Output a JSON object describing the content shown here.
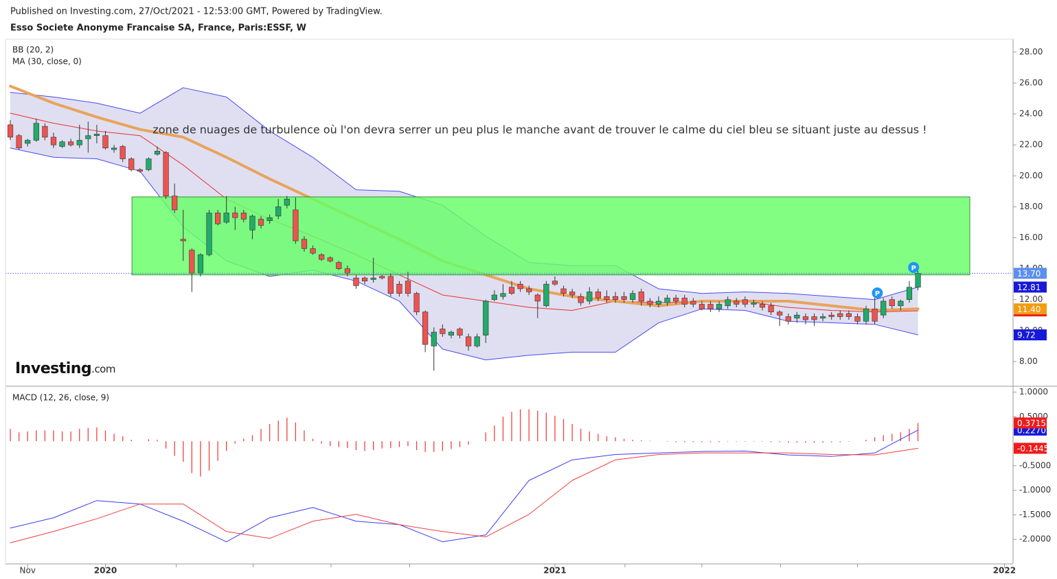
{
  "header": {
    "published": "Published on Investing.com, 27/Oct/2021 - 12:53:00 GMT, Powered by TradingView.",
    "title": "Esso Societe Anonyme Francaise SA, France, Paris:ESSF, W",
    "logo": [
      "Investing",
      ".com"
    ]
  },
  "chart_data": [
    {
      "type": "candlestick",
      "indicators": [
        "BB (20, 2)",
        "MA (30, close, 0)"
      ],
      "annotation": "zone de nuages de turbulence où l'on devra serrer un peu plus le manche avant de trouver le calme du ciel bleu se situant juste au dessus !",
      "up_color": "#22ab6a",
      "down_color": "#ef5350",
      "last_close_label": "13.70",
      "last_close_color": "#5b8ff0",
      "candles": [
        [
          23.3,
          23.6,
          22.3,
          22.5
        ],
        [
          22.6,
          22.7,
          21.7,
          21.8
        ],
        [
          22.1,
          22.4,
          21.9,
          22.3
        ],
        [
          22.3,
          23.7,
          22.2,
          23.4
        ],
        [
          23.2,
          23.4,
          22.3,
          22.5
        ],
        [
          22.5,
          22.8,
          21.8,
          22.0
        ],
        [
          21.9,
          22.3,
          21.8,
          22.2
        ],
        [
          22.2,
          22.4,
          21.9,
          22.0
        ],
        [
          22.0,
          23.3,
          21.8,
          22.3
        ],
        [
          22.4,
          23.5,
          21.5,
          22.6
        ],
        [
          22.6,
          23.3,
          22.1,
          22.7
        ],
        [
          22.6,
          22.9,
          21.7,
          21.8
        ],
        [
          21.7,
          22.0,
          21.5,
          21.8
        ],
        [
          21.9,
          22.0,
          20.9,
          21.1
        ],
        [
          21.1,
          21.2,
          20.3,
          20.4
        ],
        [
          20.4,
          20.5,
          20.2,
          20.3
        ],
        [
          20.4,
          21.2,
          20.3,
          21.1
        ],
        [
          21.4,
          21.9,
          21.3,
          21.6
        ],
        [
          21.5,
          21.6,
          18.5,
          18.7
        ],
        [
          18.7,
          19.5,
          17.6,
          17.8
        ],
        [
          15.9,
          17.8,
          14.5,
          15.8
        ],
        [
          15.2,
          15.3,
          12.5,
          13.7
        ],
        [
          13.7,
          15.0,
          13.5,
          14.9
        ],
        [
          14.9,
          17.8,
          14.8,
          17.6
        ],
        [
          17.6,
          17.8,
          16.8,
          16.9
        ],
        [
          17.0,
          18.7,
          16.9,
          17.6
        ],
        [
          17.6,
          18.0,
          16.5,
          17.3
        ],
        [
          17.6,
          17.8,
          17.0,
          17.2
        ],
        [
          16.5,
          17.5,
          15.9,
          17.4
        ],
        [
          17.2,
          17.4,
          16.6,
          16.8
        ],
        [
          17.1,
          17.5,
          16.9,
          17.3
        ],
        [
          17.4,
          18.5,
          17.2,
          18.0
        ],
        [
          18.1,
          18.7,
          17.9,
          18.5
        ],
        [
          17.8,
          18.6,
          15.6,
          15.8
        ],
        [
          15.9,
          16.1,
          15.1,
          15.3
        ],
        [
          15.3,
          15.5,
          14.9,
          15.0
        ],
        [
          14.9,
          15.0,
          14.5,
          14.6
        ],
        [
          14.7,
          14.8,
          14.4,
          14.5
        ],
        [
          14.4,
          14.5,
          13.9,
          14.0
        ],
        [
          14.0,
          14.2,
          13.5,
          13.7
        ],
        [
          13.4,
          13.6,
          12.7,
          12.9
        ],
        [
          13.4,
          13.5,
          13.0,
          13.2
        ],
        [
          13.3,
          14.7,
          13.1,
          13.4
        ],
        [
          13.5,
          13.6,
          13.3,
          13.4
        ],
        [
          13.5,
          13.7,
          12.2,
          12.4
        ],
        [
          13.0,
          13.2,
          12.2,
          12.4
        ],
        [
          13.2,
          13.8,
          12.2,
          12.4
        ],
        [
          12.4,
          12.5,
          11.0,
          11.2
        ],
        [
          11.2,
          11.3,
          8.6,
          9.1
        ],
        [
          9.0,
          10.2,
          7.4,
          9.9
        ],
        [
          10.1,
          10.4,
          9.6,
          9.8
        ],
        [
          9.7,
          10.0,
          9.5,
          9.9
        ],
        [
          10.1,
          10.2,
          9.5,
          9.7
        ],
        [
          9.6,
          9.8,
          8.7,
          9.0
        ],
        [
          9.0,
          9.8,
          8.9,
          9.6
        ],
        [
          9.7,
          12.0,
          9.2,
          11.9
        ],
        [
          12.0,
          12.6,
          11.9,
          12.3
        ],
        [
          12.2,
          13.0,
          12.0,
          12.4
        ],
        [
          12.8,
          13.2,
          12.3,
          12.4
        ],
        [
          13.0,
          13.2,
          12.5,
          12.7
        ],
        [
          12.7,
          12.9,
          12.3,
          12.5
        ],
        [
          12.3,
          12.4,
          10.8,
          11.9
        ],
        [
          11.6,
          13.2,
          11.5,
          13.0
        ],
        [
          13.2,
          13.5,
          12.9,
          13.0
        ],
        [
          12.7,
          12.9,
          12.2,
          12.4
        ],
        [
          12.5,
          12.7,
          12.1,
          12.3
        ],
        [
          12.2,
          12.4,
          11.6,
          11.8
        ],
        [
          11.9,
          12.8,
          11.7,
          12.5
        ],
        [
          12.5,
          12.7,
          11.9,
          12.1
        ],
        [
          12.2,
          12.6,
          11.8,
          12.0
        ],
        [
          12.2,
          12.5,
          11.8,
          12.0
        ],
        [
          12.2,
          12.5,
          11.8,
          12.0
        ],
        [
          12.0,
          12.6,
          11.8,
          12.4
        ],
        [
          12.5,
          12.7,
          11.6,
          11.9
        ],
        [
          11.9,
          12.1,
          11.5,
          11.7
        ],
        [
          11.7,
          12.2,
          11.5,
          11.9
        ],
        [
          11.8,
          12.3,
          11.6,
          12.1
        ],
        [
          12.1,
          12.3,
          11.7,
          11.9
        ],
        [
          12.1,
          12.3,
          11.5,
          11.7
        ],
        [
          11.9,
          12.1,
          11.5,
          11.7
        ],
        [
          11.7,
          11.9,
          11.3,
          11.4
        ],
        [
          11.7,
          11.9,
          11.2,
          11.4
        ],
        [
          11.4,
          11.9,
          11.2,
          11.7
        ],
        [
          11.6,
          12.2,
          11.4,
          12.0
        ],
        [
          11.9,
          12.1,
          11.5,
          11.7
        ],
        [
          12.0,
          12.2,
          11.5,
          11.7
        ],
        [
          11.7,
          12.0,
          11.5,
          11.8
        ],
        [
          11.7,
          11.9,
          11.3,
          11.5
        ],
        [
          11.6,
          11.8,
          11.0,
          11.2
        ],
        [
          11.2,
          11.3,
          10.3,
          11.0
        ],
        [
          10.9,
          11.1,
          10.4,
          10.6
        ],
        [
          10.8,
          11.2,
          10.5,
          11.0
        ],
        [
          10.9,
          11.1,
          10.4,
          10.7
        ],
        [
          10.9,
          11.1,
          10.3,
          10.7
        ],
        [
          10.8,
          11.1,
          10.6,
          10.9
        ],
        [
          11.0,
          11.2,
          10.7,
          10.9
        ],
        [
          11.1,
          11.3,
          10.7,
          10.9
        ],
        [
          11.1,
          11.3,
          10.7,
          10.9
        ],
        [
          10.9,
          11.1,
          10.4,
          10.6
        ],
        [
          10.6,
          11.6,
          10.4,
          11.4
        ],
        [
          11.4,
          12.2,
          10.4,
          10.6
        ],
        [
          11.0,
          12.1,
          10.8,
          11.9
        ],
        [
          12.0,
          12.2,
          11.4,
          11.6
        ],
        [
          11.6,
          12.0,
          11.3,
          11.9
        ],
        [
          12.0,
          13.2,
          11.8,
          12.8
        ],
        [
          12.8,
          13.9,
          12.6,
          13.7
        ]
      ],
      "line_x": [
        0,
        5,
        10,
        15,
        20,
        25,
        30,
        35,
        40,
        45,
        50,
        55,
        60,
        65,
        70,
        75,
        80,
        85,
        90,
        95,
        100,
        105
      ],
      "band": {
        "color": "#d9d9ee",
        "between": [
          0,
          2
        ]
      },
      "series": [
        {
          "color": "#4a4af0",
          "width": 1,
          "tag_color": "#1818d8",
          "values": [
            25.4,
            25.1,
            24.7,
            24.05,
            25.7,
            25.1,
            22.9,
            21.2,
            19.1,
            19.0,
            18.1,
            16.1,
            14.4,
            14.2,
            14.2,
            12.7,
            12.4,
            12.5,
            12.4,
            12.2,
            12.0,
            12.81
          ]
        },
        {
          "color": "#e83030",
          "width": 1,
          "tag_color": "#e81c1c",
          "values": [
            24.05,
            23.4,
            22.9,
            22.6,
            20.7,
            18.5,
            17.2,
            16.1,
            14.9,
            13.6,
            12.3,
            11.9,
            11.5,
            11.3,
            11.9,
            11.8,
            11.9,
            11.9,
            11.5,
            11.3,
            11.2,
            11.27
          ]
        },
        {
          "color": "#4a4af0",
          "width": 1,
          "tag_color": "#1818d8",
          "values": [
            21.8,
            21.2,
            21.1,
            20.3,
            16.7,
            14.5,
            13.5,
            13.9,
            13.2,
            11.9,
            8.8,
            8.1,
            8.4,
            8.6,
            8.6,
            10.5,
            11.4,
            11.3,
            10.6,
            10.5,
            10.4,
            9.72
          ]
        },
        {
          "color": "#e9a35a",
          "width": 4,
          "tag_color": "#f39c12",
          "last_label": "11.40",
          "values": [
            25.8,
            24.7,
            23.8,
            23.0,
            22.5,
            21.2,
            19.8,
            18.5,
            17.2,
            15.9,
            14.5,
            13.6,
            12.7,
            12.2,
            11.9,
            11.6,
            11.9,
            11.9,
            11.9,
            11.6,
            11.3,
            11.4
          ]
        }
      ],
      "zone": {
        "x": [
          14.07,
          111
        ],
        "y": [
          13.6,
          18.64
        ],
        "color": "#66ff66",
        "border": "#3c8d3c"
      },
      "markers": [
        {
          "x": 100.3,
          "y": 12.43,
          "label": "P"
        },
        {
          "x": 104.5,
          "y": 14.08,
          "label": "P"
        }
      ],
      "marker_color": "#2196f3",
      "xlim": [
        -0.56,
        116
      ],
      "ylim": [
        6.4,
        28.84
      ],
      "yticks": [
        {
          "value": 8,
          "label": "8.00"
        },
        {
          "value": 10,
          "label": "10.00"
        },
        {
          "value": 12,
          "label": "12.00"
        },
        {
          "value": 14,
          "label": "14.00"
        },
        {
          "value": 16,
          "label": "16.00"
        },
        {
          "value": 18,
          "label": "18.00"
        },
        {
          "value": 20,
          "label": "20.00"
        },
        {
          "value": 22,
          "label": "22.00"
        },
        {
          "value": 24,
          "label": "24.00"
        },
        {
          "value": 26,
          "label": "26.00"
        },
        {
          "value": 28,
          "label": "28.00"
        }
      ]
    },
    {
      "type": "macd",
      "title": "MACD (12, 26, close, 9)",
      "histogram": {
        "color": "#f04040",
        "values": [
          0.25,
          0.18,
          0.2,
          0.22,
          0.22,
          0.22,
          0.2,
          0.2,
          0.25,
          0.27,
          0.28,
          0.22,
          0.15,
          0.1,
          0.03,
          0.0,
          0.04,
          0.03,
          -0.15,
          -0.3,
          -0.42,
          -0.65,
          -0.72,
          -0.6,
          -0.4,
          -0.2,
          -0.05,
          0.05,
          0.12,
          0.25,
          0.35,
          0.42,
          0.48,
          0.38,
          0.22,
          0.05,
          -0.05,
          -0.1,
          -0.12,
          -0.14,
          -0.18,
          -0.2,
          -0.18,
          -0.15,
          -0.14,
          -0.12,
          -0.1,
          -0.18,
          -0.22,
          -0.22,
          -0.2,
          -0.16,
          -0.12,
          -0.07,
          0.0,
          0.18,
          0.32,
          0.5,
          0.6,
          0.65,
          0.65,
          0.62,
          0.58,
          0.52,
          0.45,
          0.35,
          0.25,
          0.2,
          0.15,
          0.1,
          0.08,
          0.05,
          0.03,
          0.02,
          0.01,
          0.0,
          -0.01,
          -0.02,
          -0.02,
          -0.02,
          -0.02,
          -0.02,
          -0.02,
          -0.01,
          -0.01,
          -0.01,
          -0.01,
          -0.01,
          -0.02,
          -0.02,
          -0.03,
          -0.03,
          -0.03,
          -0.03,
          -0.03,
          -0.02,
          -0.02,
          -0.01,
          0.0,
          0.03,
          0.08,
          0.12,
          0.15,
          0.18,
          0.25,
          0.3715
        ],
        "tag_color": "#ee1c1c"
      },
      "line_x": [
        0,
        5,
        10,
        15,
        20,
        25,
        30,
        35,
        40,
        45,
        50,
        55,
        60,
        65,
        70,
        75,
        80,
        85,
        90,
        95,
        100,
        105
      ],
      "series": [
        {
          "color": "#3b3bf0",
          "width": 1,
          "tag_color": "#1818d8",
          "last_label": "0.2270",
          "values": [
            -1.77,
            -1.56,
            -1.21,
            -1.28,
            -1.63,
            -2.05,
            -1.56,
            -1.35,
            -1.63,
            -1.7,
            -2.05,
            -1.91,
            -0.8,
            -0.38,
            -0.27,
            -0.24,
            -0.21,
            -0.2,
            -0.28,
            -0.31,
            -0.24,
            0.227
          ]
        },
        {
          "color": "#f03c3c",
          "width": 1,
          "tag_color": "#ee1c1c",
          "values": [
            -2.07,
            -1.84,
            -1.58,
            -1.28,
            -1.28,
            -1.84,
            -1.98,
            -1.63,
            -1.49,
            -1.7,
            -1.84,
            -1.95,
            -1.49,
            -0.8,
            -0.38,
            -0.27,
            -0.24,
            -0.24,
            -0.24,
            -0.27,
            -0.28,
            -0.1445
          ]
        }
      ],
      "xlim": [
        -0.56,
        116
      ],
      "ylim": [
        -2.5,
        1.12
      ],
      "yticks": [
        {
          "value": 1,
          "label": "1.0000"
        },
        {
          "value": 0.5,
          "label": "0.5000"
        },
        {
          "value": -0.5,
          "label": "-0.5000"
        },
        {
          "value": -1,
          "label": "-1.0000"
        },
        {
          "value": -1.5,
          "label": "-1.5000"
        },
        {
          "value": -2,
          "label": "-2.0000"
        }
      ],
      "xticks": [
        {
          "value": 2,
          "label": "Nov"
        },
        {
          "value": 11,
          "label": "2020"
        },
        {
          "value": 63,
          "label": "2021"
        },
        {
          "value": 115,
          "label": "2022"
        }
      ],
      "xminorticks": [
        19.2,
        28.1,
        37.1,
        46.2,
        71.1,
        80,
        89.1,
        98
      ]
    }
  ]
}
